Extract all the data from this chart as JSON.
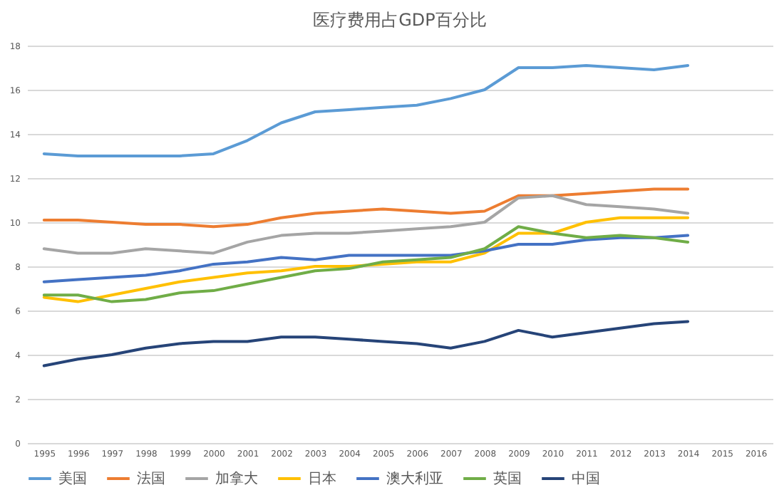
{
  "chart_data": {
    "type": "line",
    "title": "医疗费用占GDP百分比",
    "categories": [
      "1995",
      "1996",
      "1997",
      "1998",
      "1999",
      "2000",
      "2001",
      "2002",
      "2003",
      "2004",
      "2005",
      "2006",
      "2007",
      "2008",
      "2009",
      "2010",
      "2011",
      "2012",
      "2013",
      "2014",
      "2015",
      "2016"
    ],
    "series": [
      {
        "name": "美国",
        "color": "#5b9bd5",
        "values": [
          13.1,
          13.0,
          13.0,
          13.0,
          13.0,
          13.1,
          13.7,
          14.5,
          15.0,
          15.1,
          15.2,
          15.3,
          15.6,
          16.0,
          17.0,
          17.0,
          17.1,
          17.0,
          16.9,
          17.1,
          null,
          null
        ]
      },
      {
        "name": "法国",
        "color": "#ed7d31",
        "values": [
          10.1,
          10.1,
          10.0,
          9.9,
          9.9,
          9.8,
          9.9,
          10.2,
          10.4,
          10.5,
          10.6,
          10.5,
          10.4,
          10.5,
          11.2,
          11.2,
          11.3,
          11.4,
          11.5,
          11.5,
          null,
          null
        ]
      },
      {
        "name": "加拿大",
        "color": "#a5a5a5",
        "values": [
          8.8,
          8.6,
          8.6,
          8.8,
          8.7,
          8.6,
          9.1,
          9.4,
          9.5,
          9.5,
          9.6,
          9.7,
          9.8,
          10.0,
          11.1,
          11.2,
          10.8,
          10.7,
          10.6,
          10.4,
          null,
          null
        ]
      },
      {
        "name": "日本",
        "color": "#ffc000",
        "values": [
          6.6,
          6.4,
          6.7,
          7.0,
          7.3,
          7.5,
          7.7,
          7.8,
          8.0,
          8.0,
          8.1,
          8.2,
          8.2,
          8.6,
          9.5,
          9.5,
          10.0,
          10.2,
          10.2,
          10.2,
          null,
          null
        ]
      },
      {
        "name": "澳大利亚",
        "color": "#4472c4",
        "values": [
          7.3,
          7.4,
          7.5,
          7.6,
          7.8,
          8.1,
          8.2,
          8.4,
          8.3,
          8.5,
          8.5,
          8.5,
          8.5,
          8.7,
          9.0,
          9.0,
          9.2,
          9.3,
          9.3,
          9.4,
          null,
          null
        ]
      },
      {
        "name": "英国",
        "color": "#70ad47",
        "values": [
          6.7,
          6.7,
          6.4,
          6.5,
          6.8,
          6.9,
          7.2,
          7.5,
          7.8,
          7.9,
          8.2,
          8.3,
          8.4,
          8.8,
          9.8,
          9.5,
          9.3,
          9.4,
          9.3,
          9.1,
          null,
          null
        ]
      },
      {
        "name": "中国",
        "color": "#264478",
        "values": [
          3.5,
          3.8,
          4.0,
          4.3,
          4.5,
          4.6,
          4.6,
          4.8,
          4.8,
          4.7,
          4.6,
          4.5,
          4.3,
          4.6,
          5.1,
          4.8,
          5.0,
          5.2,
          5.4,
          5.5,
          null,
          null
        ]
      }
    ],
    "ylim": [
      0,
      18
    ],
    "yticks": [
      0,
      2,
      4,
      6,
      8,
      10,
      12,
      14,
      16,
      18
    ],
    "grid": "y",
    "legend": "bottom",
    "line_style": "solid"
  }
}
